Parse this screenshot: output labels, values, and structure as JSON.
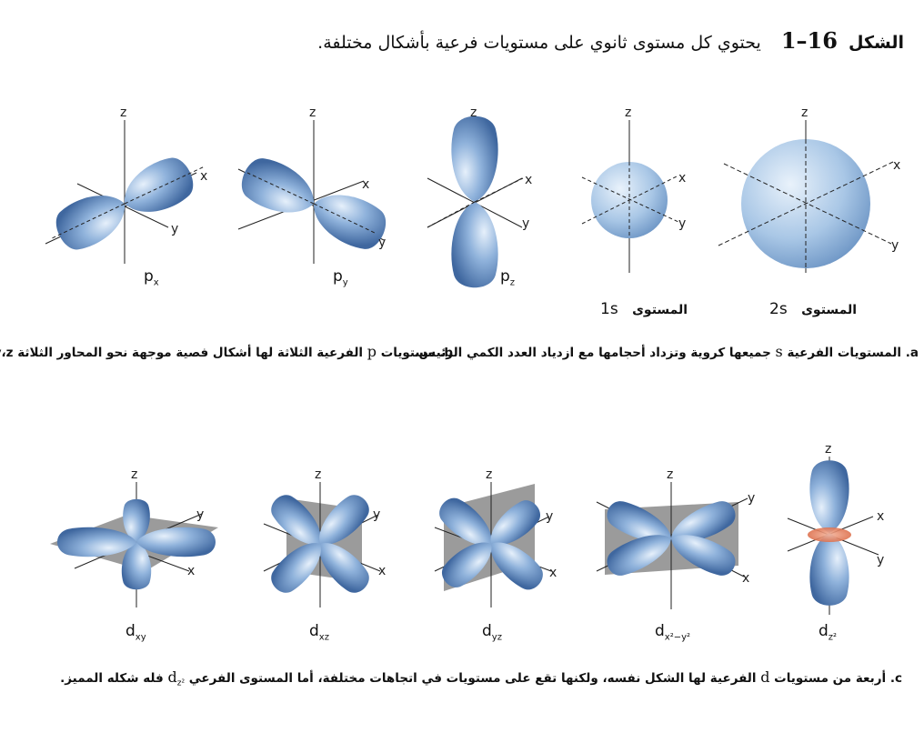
{
  "title": {
    "figure_word": "الشكل",
    "number": "16–1",
    "text": "يحتوي كل مستوى ثانوي على مستويات فرعية بأشكال مختلفة."
  },
  "axis": {
    "x": "x",
    "y": "y",
    "z": "z"
  },
  "orbitals_top": {
    "px": {
      "main": "p",
      "sub": "x"
    },
    "py": {
      "main": "p",
      "sub": "y"
    },
    "pz": {
      "main": "p",
      "sub": "z"
    },
    "s1": {
      "name": "1s",
      "level": "المستوى"
    },
    "s2": {
      "name": "2s",
      "level": "المستوى"
    }
  },
  "captions": {
    "a": {
      "letter": "a.",
      "pre": "المستويات الفرعية",
      "sym": "s",
      "post": "جميعها كروية وتزداد أحجامها مع ازدياد العدد الكمي الرئيس."
    },
    "b": {
      "letter": "b.",
      "pre": "مستويات",
      "sym": "p",
      "post": "الفرعية الثلاثة لها أشكال فصية موجهة نحو المحاور الثلاثة x،y،z."
    },
    "c": {
      "letter": "c.",
      "pre": "أربعة من مستويات",
      "sym": "d",
      "mid": "الفرعية لها الشكل نفسه، ولكنها تقع على مستويات في اتجاهات مختلفة، أما المستوى الفرعي",
      "sym2": "d",
      "sym2_sub": "z²",
      "post": "فله شكله المميز."
    }
  },
  "orbitals_bottom": {
    "dxy": {
      "main": "d",
      "sub": "xy"
    },
    "dxz": {
      "main": "d",
      "sub": "xz"
    },
    "dyz": {
      "main": "d",
      "sub": "yz"
    },
    "dx2y2": {
      "main": "d",
      "sub": "x²−y²"
    },
    "dz2": {
      "main": "d",
      "sub": "z²"
    }
  },
  "colors": {
    "lobe_light": "#cfe0f4",
    "lobe_mid": "#8fb2db",
    "lobe_dark": "#3f679f",
    "plane": "#8a8a8a",
    "ring": "#e07a5a"
  }
}
